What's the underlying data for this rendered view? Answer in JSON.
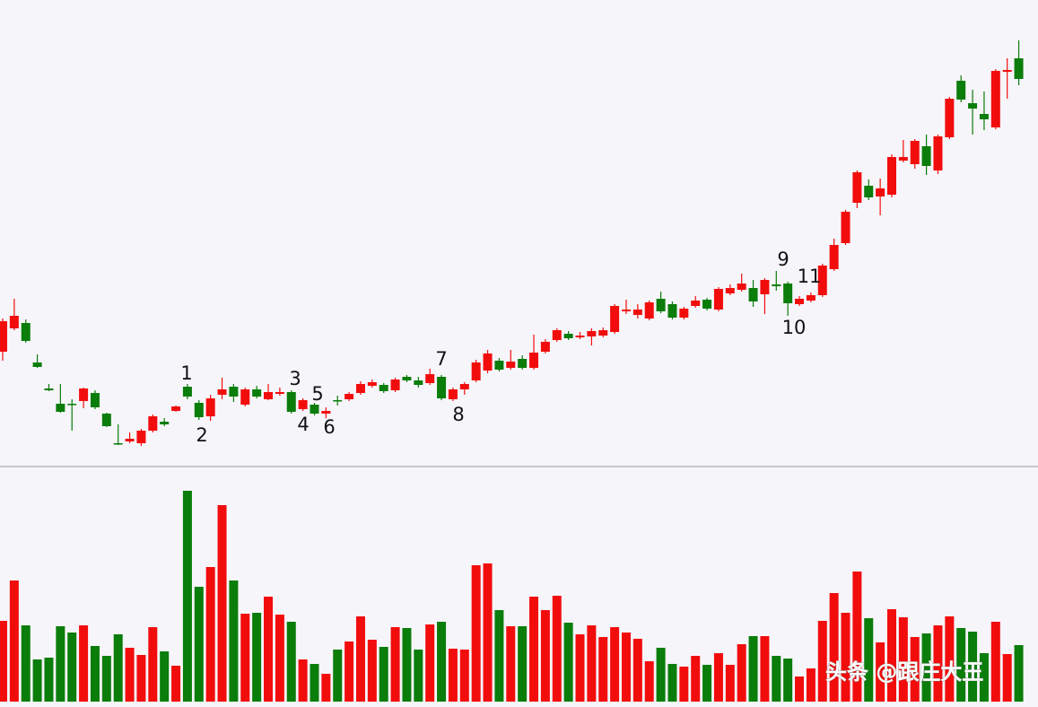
{
  "chart_data": {
    "type": "candlestick",
    "ylim": [
      0,
      520
    ],
    "volume_ylim": [
      0,
      262
    ],
    "up_color": "#f20d0d",
    "down_color": "#0a7d0a",
    "open": [
      128,
      154,
      160,
      116,
      87,
      70,
      70,
      73,
      82,
      59,
      26,
      28,
      26,
      40,
      50,
      62,
      89,
      71,
      56,
      80,
      89,
      69,
      86,
      75,
      81,
      83,
      64,
      69,
      59,
      74,
      75,
      82,
      90,
      91,
      85,
      100,
      96,
      93,
      100,
      75,
      86,
      96,
      107,
      118,
      110,
      120,
      110,
      128,
      141,
      148,
      144,
      145,
      146,
      150,
      173,
      169,
      165,
      187,
      181,
      166,
      179,
      186,
      175,
      193,
      197,
      199,
      192,
      203,
      204,
      181,
      185,
      191,
      220,
      249,
      294,
      313,
      301,
      303,
      341,
      337,
      357,
      330,
      367,
      430,
      405,
      393,
      378,
      440,
      455
    ],
    "high": [
      165,
      187,
      164,
      125,
      92,
      92,
      75,
      88,
      85,
      60,
      47,
      38,
      42,
      58,
      54,
      68,
      92,
      74,
      80,
      99,
      92,
      88,
      90,
      92,
      88,
      85,
      76,
      71,
      66,
      79,
      83,
      95,
      97,
      93,
      99,
      102,
      100,
      109,
      102,
      88,
      94,
      119,
      130,
      121,
      130,
      124,
      147,
      142,
      154,
      151,
      150,
      154,
      155,
      181,
      186,
      181,
      185,
      195,
      184,
      178,
      190,
      188,
      200,
      203,
      215,
      208,
      210,
      218,
      206,
      190,
      194,
      226,
      254,
      286,
      330,
      320,
      321,
      348,
      364,
      365,
      370,
      370,
      412,
      436,
      420,
      418,
      443,
      455,
      475
    ],
    "low": [
      118,
      152,
      138,
      110,
      84,
      60,
      40,
      65,
      64,
      44,
      24,
      26,
      23,
      38,
      45,
      61,
      75,
      52,
      51,
      75,
      72,
      67,
      76,
      74,
      79,
      59,
      62,
      57,
      54,
      68,
      73,
      80,
      88,
      82,
      83,
      94,
      88,
      91,
      74,
      73,
      80,
      94,
      104,
      106,
      108,
      108,
      108,
      126,
      139,
      141,
      142,
      135,
      144,
      148,
      170,
      165,
      163,
      171,
      164,
      164,
      177,
      174,
      173,
      191,
      195,
      178,
      170,
      196,
      168,
      179,
      183,
      189,
      218,
      247,
      288,
      297,
      280,
      300,
      339,
      332,
      325,
      326,
      365,
      406,
      370,
      375,
      376,
      410,
      425
    ],
    "close": [
      162,
      168,
      140,
      111,
      85,
      61,
      69,
      87,
      66,
      45,
      25,
      31,
      40,
      56,
      47,
      67,
      78,
      55,
      76,
      86,
      78,
      86,
      78,
      83,
      83,
      61,
      74,
      59,
      62,
      73,
      81,
      92,
      94,
      84,
      97,
      96,
      91,
      103,
      76,
      86,
      92,
      116,
      126,
      108,
      117,
      110,
      127,
      139,
      152,
      143,
      146,
      151,
      152,
      179,
      175,
      175,
      183,
      173,
      166,
      176,
      185,
      176,
      198,
      199,
      204,
      184,
      208,
      201,
      182,
      187,
      191,
      224,
      247,
      284,
      328,
      300,
      310,
      345,
      345,
      363,
      335,
      368,
      410,
      409,
      399,
      387,
      441,
      442,
      432
    ],
    "volume": [
      90,
      135,
      85,
      47,
      49,
      84,
      77,
      85,
      62,
      51,
      75,
      60,
      52,
      83,
      56,
      40,
      235,
      128,
      150,
      219,
      135,
      98,
      99,
      117,
      97,
      89,
      47,
      42,
      31,
      58,
      67,
      95,
      69,
      61,
      83,
      82,
      58,
      86,
      89,
      59,
      58,
      152,
      154,
      102,
      84,
      84,
      117,
      102,
      118,
      88,
      75,
      85,
      72,
      83,
      77,
      70,
      45,
      60,
      42,
      39,
      51,
      41,
      54,
      41,
      64,
      73,
      73,
      51,
      48,
      28,
      37,
      90,
      121,
      99,
      145,
      93,
      66,
      103,
      94,
      72,
      76,
      85,
      95,
      82,
      78,
      54,
      89,
      53,
      63
    ],
    "annotations": [
      "1",
      "2",
      "3",
      "4",
      "5",
      "6",
      "7",
      "8",
      "9",
      "10",
      "11"
    ],
    "watermark": "头条 @跟庄大王"
  }
}
